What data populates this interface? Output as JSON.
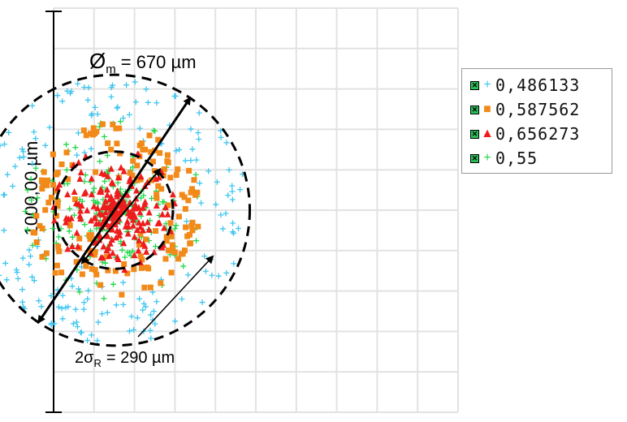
{
  "chart_data": {
    "type": "scatter",
    "title": "",
    "ylabel": "1000,00  µm",
    "xlabel": "",
    "xlim": [
      -150,
      850
    ],
    "ylim": [
      -500,
      500
    ],
    "grid": true,
    "legend_position": "top-right",
    "center": [
      0,
      0
    ],
    "series": [
      {
        "name": "0,486133",
        "marker": "+",
        "color": "#3ec6f0",
        "spread": 330,
        "count": 190
      },
      {
        "name": "0,587562",
        "marker": "square",
        "color": "#f28a1a",
        "spread": 215,
        "count": 160
      },
      {
        "name": "0,656273",
        "marker": "triangle",
        "color": "#ee1c1c",
        "spread": 150,
        "count": 220
      },
      {
        "name": "0,55",
        "marker": "+",
        "color": "#23d84a",
        "spread": 220,
        "count": 210
      }
    ],
    "annotations": {
      "diameter_label": "= 670 µm",
      "diameter_symbol": "Ø",
      "diameter_subscript": "m",
      "sigma_label": "= 290 µm",
      "sigma_prefix": "2σ",
      "sigma_subscript": "R"
    },
    "circles": [
      {
        "diameter": 670,
        "style": "dashed"
      },
      {
        "diameter": 290,
        "style": "dashed"
      }
    ]
  }
}
